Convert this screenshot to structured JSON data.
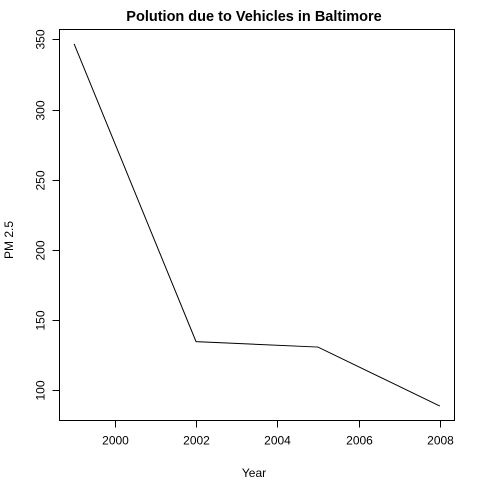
{
  "chart_data": {
    "type": "line",
    "title": "Polution due to Vehicles in Baltimore",
    "xlabel": "Year",
    "ylabel": "PM 2.5",
    "x": [
      1999,
      2002,
      2005,
      2008
    ],
    "series": [
      {
        "values": [
          346.8,
          134.3,
          130.4,
          88.3
        ],
        "color": "#000000"
      }
    ],
    "xlim": [
      1999,
      2008
    ],
    "ylim": [
      88.3,
      346.8
    ],
    "xticks": [
      2000,
      2002,
      2004,
      2006,
      2008
    ],
    "yticks": [
      100,
      150,
      200,
      250,
      300,
      350
    ],
    "xtick_labels": [
      "2000",
      "2002",
      "2004",
      "2006",
      "2008"
    ],
    "ytick_labels": [
      "100",
      "150",
      "200",
      "250",
      "300",
      "350"
    ],
    "grid": false,
    "legend": "none"
  }
}
